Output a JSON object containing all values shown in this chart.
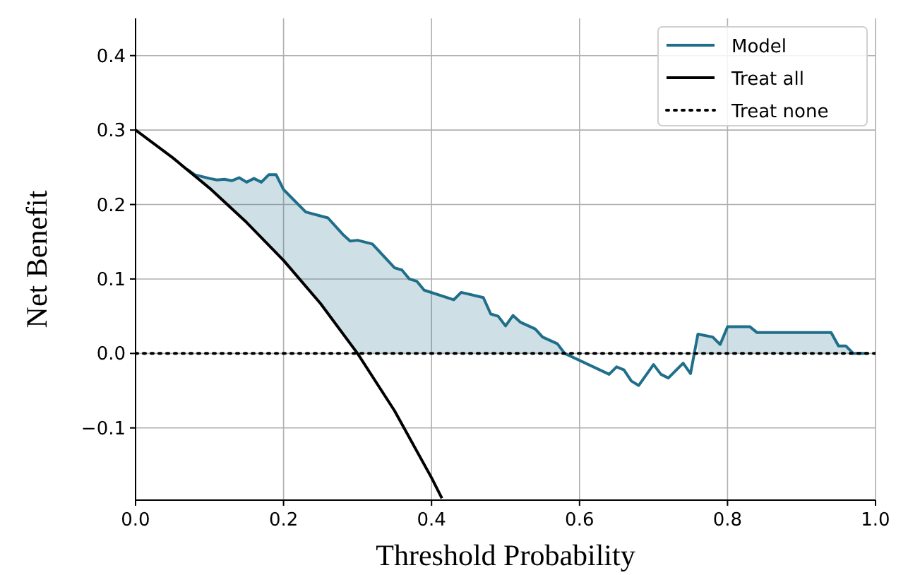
{
  "chart_data": {
    "type": "line",
    "xlabel": "Threshold Probability",
    "ylabel": "Net Benefit",
    "xlim": [
      0,
      1
    ],
    "ylim": [
      -0.197,
      0.45
    ],
    "xticks": [
      {
        "value": 0,
        "label": "0.0"
      },
      0.2,
      0.4,
      0.6,
      0.8,
      {
        "value": 1,
        "label": "1.0"
      }
    ],
    "yticks": [
      {
        "value": -0.1,
        "label": "−0.1"
      },
      {
        "value": 0,
        "label": "0.0"
      },
      0.1,
      0.2,
      0.3,
      0.4
    ],
    "grid": true,
    "legend": "top right",
    "series": [
      {
        "name": "Model",
        "color": "#1f6f8b",
        "line_style": "solid",
        "x": [
          0.07,
          0.08,
          0.1,
          0.11,
          0.12,
          0.13,
          0.14,
          0.15,
          0.16,
          0.17,
          0.18,
          0.19,
          0.2,
          0.21,
          0.23,
          0.26,
          0.28,
          0.29,
          0.3,
          0.32,
          0.35,
          0.36,
          0.37,
          0.38,
          0.39,
          0.43,
          0.44,
          0.47,
          0.48,
          0.49,
          0.5,
          0.51,
          0.52,
          0.54,
          0.55,
          0.57,
          0.58,
          0.64,
          0.65,
          0.66,
          0.67,
          0.68,
          0.7,
          0.71,
          0.72,
          0.74,
          0.75,
          0.76,
          0.78,
          0.79,
          0.8,
          0.83,
          0.84,
          0.94,
          0.95,
          0.96,
          0.97,
          0.99
        ],
        "values": [
          0.247,
          0.24,
          0.235,
          0.233,
          0.234,
          0.232,
          0.236,
          0.23,
          0.235,
          0.23,
          0.24,
          0.24,
          0.22,
          0.21,
          0.19,
          0.182,
          0.16,
          0.151,
          0.152,
          0.147,
          0.115,
          0.112,
          0.1,
          0.097,
          0.085,
          0.072,
          0.082,
          0.075,
          0.053,
          0.05,
          0.037,
          0.051,
          0.042,
          0.033,
          0.022,
          0.013,
          0.0,
          -0.028,
          -0.018,
          -0.022,
          -0.037,
          -0.043,
          -0.015,
          -0.028,
          -0.033,
          -0.013,
          -0.027,
          0.026,
          0.022,
          0.012,
          0.036,
          0.036,
          0.028,
          0.028,
          0.01,
          0.01,
          0.0,
          0.0
        ],
        "lower": [
          0.247,
          0.239,
          0.222,
          0.213,
          0.205,
          0.195,
          0.186,
          0.176,
          0.167,
          0.157,
          0.146,
          0.136,
          0.125,
          0.114,
          0.091,
          0.054,
          0.028,
          0.014,
          0,
          0,
          0,
          0,
          0,
          0,
          0,
          0,
          0,
          0,
          0,
          0,
          0,
          0,
          0,
          0,
          0,
          0,
          0,
          null,
          null,
          null,
          null,
          null,
          null,
          null,
          null,
          null,
          null,
          0,
          0,
          0,
          0,
          0,
          0,
          0,
          0,
          0,
          0,
          0
        ],
        "upper": [
          0.247,
          0.24,
          0.235,
          0.233,
          0.234,
          0.232,
          0.236,
          0.23,
          0.235,
          0.23,
          0.24,
          0.24,
          0.22,
          0.21,
          0.19,
          0.182,
          0.16,
          0.151,
          0.152,
          0.147,
          0.115,
          0.112,
          0.1,
          0.097,
          0.085,
          0.072,
          0.082,
          0.075,
          0.053,
          0.05,
          0.037,
          0.051,
          0.042,
          0.033,
          0.022,
          0.013,
          0.0,
          null,
          null,
          null,
          null,
          null,
          null,
          null,
          null,
          null,
          null,
          0.026,
          0.022,
          0.012,
          0.036,
          0.036,
          0.028,
          0.028,
          0.01,
          0.01,
          0.0,
          0.0
        ]
      },
      {
        "name": "Treat all",
        "color": "#000000",
        "line_style": "solid",
        "x": [
          0,
          0.05,
          0.1,
          0.15,
          0.2,
          0.25,
          0.3,
          0.35,
          0.4,
          0.414
        ],
        "values": [
          0.3,
          0.263,
          0.222,
          0.176,
          0.125,
          0.067,
          0,
          -0.077,
          -0.167,
          -0.1945
        ]
      },
      {
        "name": "Treat none",
        "color": "#000000",
        "line_style": "dotted",
        "x": [
          0,
          1
        ],
        "values": [
          0,
          0
        ]
      }
    ]
  }
}
